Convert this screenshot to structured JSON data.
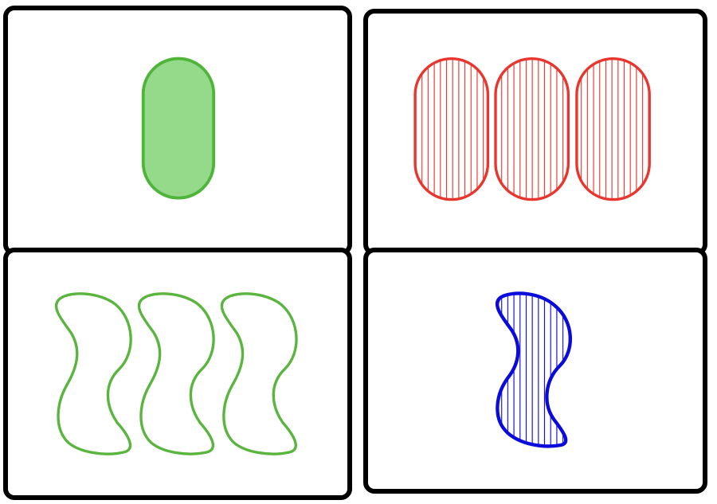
{
  "board": {
    "cards": [
      {
        "id": "card-top-left",
        "count": 1,
        "shape": "oval",
        "color": "#4eb53a",
        "fill_color": "#95d98b",
        "shading": "solid"
      },
      {
        "id": "card-top-right",
        "count": 3,
        "shape": "oval",
        "color": "#e8352d",
        "fill_color": "none",
        "shading": "striped"
      },
      {
        "id": "card-bottom-left",
        "count": 3,
        "shape": "squiggle",
        "color": "#5ab53e",
        "fill_color": "none",
        "shading": "open"
      },
      {
        "id": "card-bottom-right",
        "count": 1,
        "shape": "squiggle",
        "color": "#0a0adb",
        "fill_color": "none",
        "shading": "striped"
      }
    ]
  }
}
